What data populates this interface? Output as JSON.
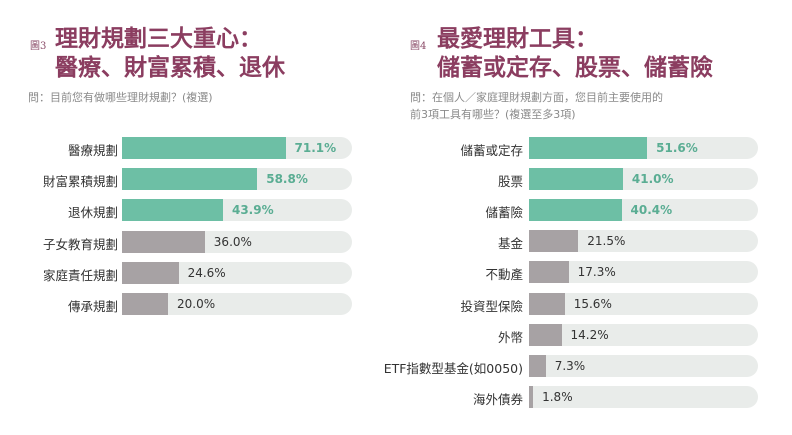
{
  "colors": {
    "title": "#8b3d60",
    "highlight": "#6dbfa5",
    "highlight_text": "#5aad93",
    "normal": "#a7a2a4",
    "track": "#e9ecea"
  },
  "chart_data": [
    {
      "type": "bar",
      "orientation": "horizontal",
      "fig_label": "圖3",
      "title": "理財規劃三大重心：",
      "title_line2": "醫療、財富累積、退休",
      "question": "問：目前您有做哪些理財規劃？(複選)",
      "categories": [
        "醫療規劃",
        "財富累積規劃",
        "退休規劃",
        "子女教育規劃",
        "家庭責任規劃",
        "傳承規劃"
      ],
      "values": [
        71.1,
        58.8,
        43.9,
        36.0,
        24.6,
        20.0
      ],
      "labels": [
        "71.1%",
        "58.8%",
        "43.9%",
        "36.0%",
        "24.6%",
        "20.0%"
      ],
      "highlighted": 3,
      "xlim": [
        0,
        100
      ]
    },
    {
      "type": "bar",
      "orientation": "horizontal",
      "fig_label": "圖4",
      "title": "最愛理財工具：",
      "title_line2": "儲蓄或定存、股票、儲蓄險",
      "question": "問：在個人／家庭理財規劃方面，您目前主要使用的",
      "question_line2": "前3項工具有哪些？(複選至多3項)",
      "categories": [
        "儲蓄或定存",
        "股票",
        "儲蓄險",
        "基金",
        "不動產",
        "投資型保險",
        "外幣",
        "ETF指數型基金(如0050)",
        "海外債券"
      ],
      "values": [
        51.6,
        41.0,
        40.4,
        21.5,
        17.3,
        15.6,
        14.2,
        7.3,
        1.8
      ],
      "labels": [
        "51.6%",
        "41.0%",
        "40.4%",
        "21.5%",
        "17.3%",
        "15.6%",
        "14.2%",
        "7.3%",
        "1.8%"
      ],
      "highlighted": 3,
      "xlim": [
        0,
        100
      ]
    }
  ]
}
